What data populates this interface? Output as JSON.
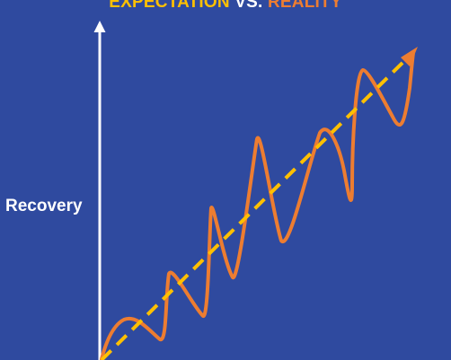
{
  "title": {
    "expectation": "EXPECTATION",
    "vs": " VS. ",
    "reality": "REALITY"
  },
  "y_axis_label": "Recovery",
  "colors": {
    "background": "#2f4a9f",
    "expectation": "#ffc000",
    "reality": "#ed7d31",
    "axis": "#ffffff"
  }
}
